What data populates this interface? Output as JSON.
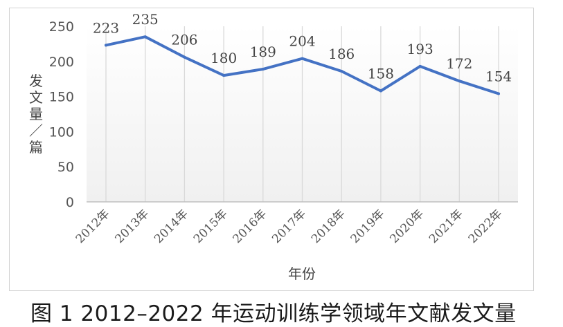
{
  "caption": "图 1  2012–2022 年运动训练学领域年文献发文量",
  "colors": {
    "line": "#4472c4",
    "grid": "#d9d9d9",
    "axis": "#bfbfbf",
    "text": "#555555"
  },
  "chart_data": {
    "type": "line",
    "categories": [
      "2012年",
      "2013年",
      "2014年",
      "2015年",
      "2016年",
      "2017年",
      "2018年",
      "2019年",
      "2020年",
      "2021年",
      "2022年"
    ],
    "series": [
      {
        "values": [
          223,
          235,
          206,
          180,
          189,
          204,
          186,
          158,
          193,
          172,
          154
        ]
      }
    ],
    "data_labels": [
      "223",
      "235",
      "206",
      "180",
      "189",
      "204",
      "186",
      "158",
      "193",
      "172",
      "154"
    ],
    "y_ticks": [
      "0",
      "50",
      "100",
      "150",
      "200",
      "250"
    ],
    "xlabel": "年份",
    "ylabel": [
      "发",
      "文",
      "量",
      "／",
      "篇"
    ],
    "ylim": [
      0,
      250
    ],
    "grid": "vertical"
  }
}
